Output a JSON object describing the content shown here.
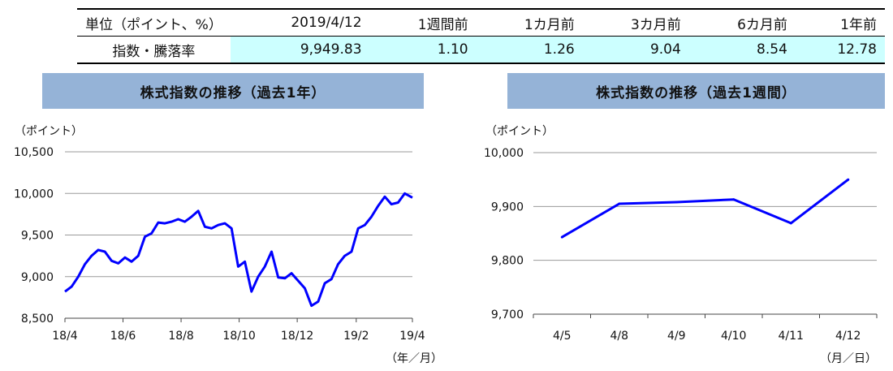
{
  "summary": {
    "headers": [
      "単位（ポイント、%）",
      "2019/4/12",
      "1週間前",
      "1カ月前",
      "3カ月前",
      "6カ月前",
      "1年前"
    ],
    "row_label": "指数・騰落率",
    "values": [
      "9,949.83",
      "1.10",
      "1.26",
      "9.04",
      "8.54",
      "12.78"
    ]
  },
  "chart_data": [
    {
      "type": "line",
      "title": "株式指数の推移（過去1年）",
      "ylabel": "（ポイント）",
      "xlabel": "（年／月）",
      "ylim": [
        8500,
        10500
      ],
      "yticks": [
        "8,500",
        "9,000",
        "9,500",
        "10,000",
        "10,500"
      ],
      "ytick_values": [
        8500,
        9000,
        9500,
        10000,
        10500
      ],
      "xticks": [
        "18/4",
        "18/6",
        "18/8",
        "18/10",
        "18/12",
        "19/2",
        "19/4"
      ],
      "xtick_dates": [
        "2018-04-12",
        "2018-06-12",
        "2018-08-12",
        "2018-10-12",
        "2018-12-12",
        "2019-02-12",
        "2019-04-12"
      ],
      "grid": true,
      "color": "#0000ff",
      "series": [
        {
          "points": [
            [
              "2018-04-12",
              8820
            ],
            [
              "2018-04-19",
              8880
            ],
            [
              "2018-04-26",
              9000
            ],
            [
              "2018-05-03",
              9150
            ],
            [
              "2018-05-10",
              9250
            ],
            [
              "2018-05-17",
              9320
            ],
            [
              "2018-05-24",
              9300
            ],
            [
              "2018-05-31",
              9190
            ],
            [
              "2018-06-07",
              9160
            ],
            [
              "2018-06-14",
              9230
            ],
            [
              "2018-06-21",
              9180
            ],
            [
              "2018-06-28",
              9250
            ],
            [
              "2018-07-05",
              9480
            ],
            [
              "2018-07-12",
              9520
            ],
            [
              "2018-07-19",
              9650
            ],
            [
              "2018-07-26",
              9640
            ],
            [
              "2018-08-02",
              9660
            ],
            [
              "2018-08-09",
              9690
            ],
            [
              "2018-08-16",
              9660
            ],
            [
              "2018-08-23",
              9720
            ],
            [
              "2018-08-30",
              9790
            ],
            [
              "2018-09-06",
              9600
            ],
            [
              "2018-09-13",
              9580
            ],
            [
              "2018-09-20",
              9620
            ],
            [
              "2018-09-27",
              9640
            ],
            [
              "2018-10-04",
              9580
            ],
            [
              "2018-10-11",
              9120
            ],
            [
              "2018-10-18",
              9180
            ],
            [
              "2018-10-25",
              8820
            ],
            [
              "2018-11-01",
              9000
            ],
            [
              "2018-11-08",
              9120
            ],
            [
              "2018-11-15",
              9300
            ],
            [
              "2018-11-22",
              8990
            ],
            [
              "2018-11-29",
              8980
            ],
            [
              "2018-12-06",
              9040
            ],
            [
              "2018-12-13",
              8950
            ],
            [
              "2018-12-20",
              8860
            ],
            [
              "2018-12-27",
              8650
            ],
            [
              "2019-01-03",
              8700
            ],
            [
              "2019-01-10",
              8920
            ],
            [
              "2019-01-17",
              8970
            ],
            [
              "2019-01-24",
              9150
            ],
            [
              "2019-01-31",
              9250
            ],
            [
              "2019-02-07",
              9300
            ],
            [
              "2019-02-14",
              9580
            ],
            [
              "2019-02-21",
              9620
            ],
            [
              "2019-02-28",
              9720
            ],
            [
              "2019-03-07",
              9850
            ],
            [
              "2019-03-14",
              9960
            ],
            [
              "2019-03-21",
              9870
            ],
            [
              "2019-03-28",
              9890
            ],
            [
              "2019-04-04",
              10000
            ],
            [
              "2019-04-12",
              9950
            ]
          ]
        }
      ]
    },
    {
      "type": "line",
      "title": "株式指数の推移（過去1週間）",
      "ylabel": "（ポイント）",
      "xlabel": "（月／日）",
      "ylim": [
        9700,
        10000
      ],
      "yticks": [
        "9,700",
        "9,800",
        "9,900",
        "10,000"
      ],
      "ytick_values": [
        9700,
        9800,
        9900,
        10000
      ],
      "categories": [
        "4/5",
        "4/8",
        "4/9",
        "4/10",
        "4/11",
        "4/12"
      ],
      "grid": true,
      "color": "#0000ff",
      "series": [
        {
          "values": [
            9843,
            9905,
            9908,
            9913,
            9869,
            9950
          ]
        }
      ]
    }
  ]
}
